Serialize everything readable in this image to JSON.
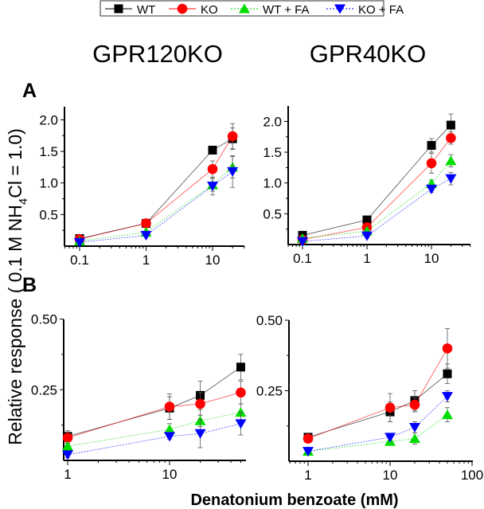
{
  "legend": {
    "entries": [
      {
        "label": "WT",
        "color": "#000000",
        "marker": "square",
        "dash": "solid"
      },
      {
        "label": "KO",
        "color": "#ff0000",
        "marker": "circle",
        "dash": "solid"
      },
      {
        "label": "WT + FA",
        "color": "#00dd00",
        "marker": "triangle-up",
        "dash": "dotted"
      },
      {
        "label": "KO + FA",
        "color": "#0000ff",
        "marker": "triangle-down",
        "dash": "dotted"
      }
    ]
  },
  "column_titles": [
    "GPR120KO",
    "GPR40KO"
  ],
  "row_labels": [
    "A",
    "B"
  ],
  "ylabel_parts": {
    "pre": "Relative response ( 0.1 M NH",
    "sub": "4",
    "post": "Cl  = 1.0)"
  },
  "xlabel": "Denatonium benzoate (mM)",
  "chart_data": [
    {
      "type": "line",
      "panel": "A",
      "title": "GPR120KO",
      "xscale": "log",
      "x": [
        0.1,
        1,
        10,
        20
      ],
      "xticks": [
        "0.1",
        "1",
        "10"
      ],
      "yticks": [
        "0.5",
        "1.0",
        "1.5",
        "2.0"
      ],
      "ylim": [
        0,
        2.2
      ],
      "xlim": [
        0.06,
        30
      ],
      "series": [
        {
          "name": "WT",
          "values": [
            0.12,
            0.36,
            1.52,
            1.7
          ],
          "err": [
            0.02,
            0.03,
            0.05,
            0.17
          ]
        },
        {
          "name": "KO",
          "values": [
            0.11,
            0.36,
            1.22,
            1.74
          ],
          "err": [
            0.02,
            0.03,
            0.13,
            0.2
          ]
        },
        {
          "name": "WT + FA",
          "values": [
            0.08,
            0.22,
            0.97,
            1.25
          ],
          "err": [
            0.02,
            0.03,
            0.1,
            0.17
          ]
        },
        {
          "name": "KO + FA",
          "values": [
            0.06,
            0.17,
            0.95,
            1.18
          ],
          "err": [
            0.02,
            0.03,
            0.14,
            0.25
          ]
        }
      ]
    },
    {
      "type": "line",
      "panel": "A",
      "title": "GPR40KO",
      "xscale": "log",
      "x": [
        0.1,
        1,
        10,
        20
      ],
      "xticks": [
        "0.1",
        "1",
        "10"
      ],
      "yticks": [
        "0.5",
        "1.0",
        "1.5",
        "2.0"
      ],
      "ylim": [
        0,
        2.2
      ],
      "xlim": [
        0.06,
        40
      ],
      "series": [
        {
          "name": "WT",
          "values": [
            0.15,
            0.4,
            1.61,
            1.94
          ],
          "err": [
            0.02,
            0.03,
            0.11,
            0.18
          ]
        },
        {
          "name": "KO",
          "values": [
            0.08,
            0.28,
            1.32,
            1.73
          ],
          "err": [
            0.02,
            0.03,
            0.16,
            0.1
          ]
        },
        {
          "name": "WT + FA",
          "values": [
            0.1,
            0.22,
            0.99,
            1.36
          ],
          "err": [
            0.02,
            0.03,
            0.06,
            0.1
          ]
        },
        {
          "name": "KO + FA",
          "values": [
            0.05,
            0.14,
            0.9,
            1.07
          ],
          "err": [
            0.02,
            0.03,
            0.05,
            0.1
          ]
        }
      ]
    },
    {
      "type": "line",
      "panel": "B",
      "title": "GPR120KO",
      "xscale": "log",
      "x": [
        1,
        10,
        20,
        50
      ],
      "xticks": [
        "1",
        "10"
      ],
      "yticks": [
        "0.25",
        "0.50"
      ],
      "ylim": [
        0,
        0.5
      ],
      "xlim": [
        0.9,
        80
      ],
      "series": [
        {
          "name": "WT",
          "values": [
            0.085,
            0.185,
            0.23,
            0.33
          ],
          "err": [
            0.02,
            0.04,
            0.05,
            0.045
          ]
        },
        {
          "name": "KO",
          "values": [
            0.08,
            0.19,
            0.2,
            0.24
          ],
          "err": [
            0.02,
            0.045,
            0.04,
            0.04
          ]
        },
        {
          "name": "WT + FA",
          "values": [
            0.05,
            0.11,
            0.14,
            0.17
          ],
          "err": [
            0.01,
            0.02,
            0.02,
            0.03
          ]
        },
        {
          "name": "KO + FA",
          "values": [
            0.02,
            0.085,
            0.095,
            0.13
          ],
          "err": [
            0.01,
            0.01,
            0.05,
            0.04
          ]
        }
      ]
    },
    {
      "type": "line",
      "panel": "B",
      "title": "GPR40KO",
      "xscale": "log",
      "x": [
        1,
        10,
        20,
        50
      ],
      "xticks": [
        "1",
        "10",
        "100"
      ],
      "yticks": [
        "0.25",
        "0.50"
      ],
      "ylim": [
        0,
        0.5
      ],
      "xlim": [
        0.8,
        100
      ],
      "series": [
        {
          "name": "WT",
          "values": [
            0.085,
            0.175,
            0.215,
            0.31
          ],
          "err": [
            0.01,
            0.035,
            0.035,
            0.035
          ]
        },
        {
          "name": "KO",
          "values": [
            0.08,
            0.19,
            0.2,
            0.4
          ],
          "err": [
            0.01,
            0.05,
            0.025,
            0.07
          ]
        },
        {
          "name": "WT + FA",
          "values": [
            0.035,
            0.07,
            0.08,
            0.165
          ],
          "err": [
            0.005,
            0.01,
            0.02,
            0.025
          ]
        },
        {
          "name": "KO + FA",
          "values": [
            0.035,
            0.085,
            0.12,
            0.23
          ],
          "err": [
            0.005,
            0.01,
            0.02,
            0.02
          ]
        }
      ]
    }
  ]
}
